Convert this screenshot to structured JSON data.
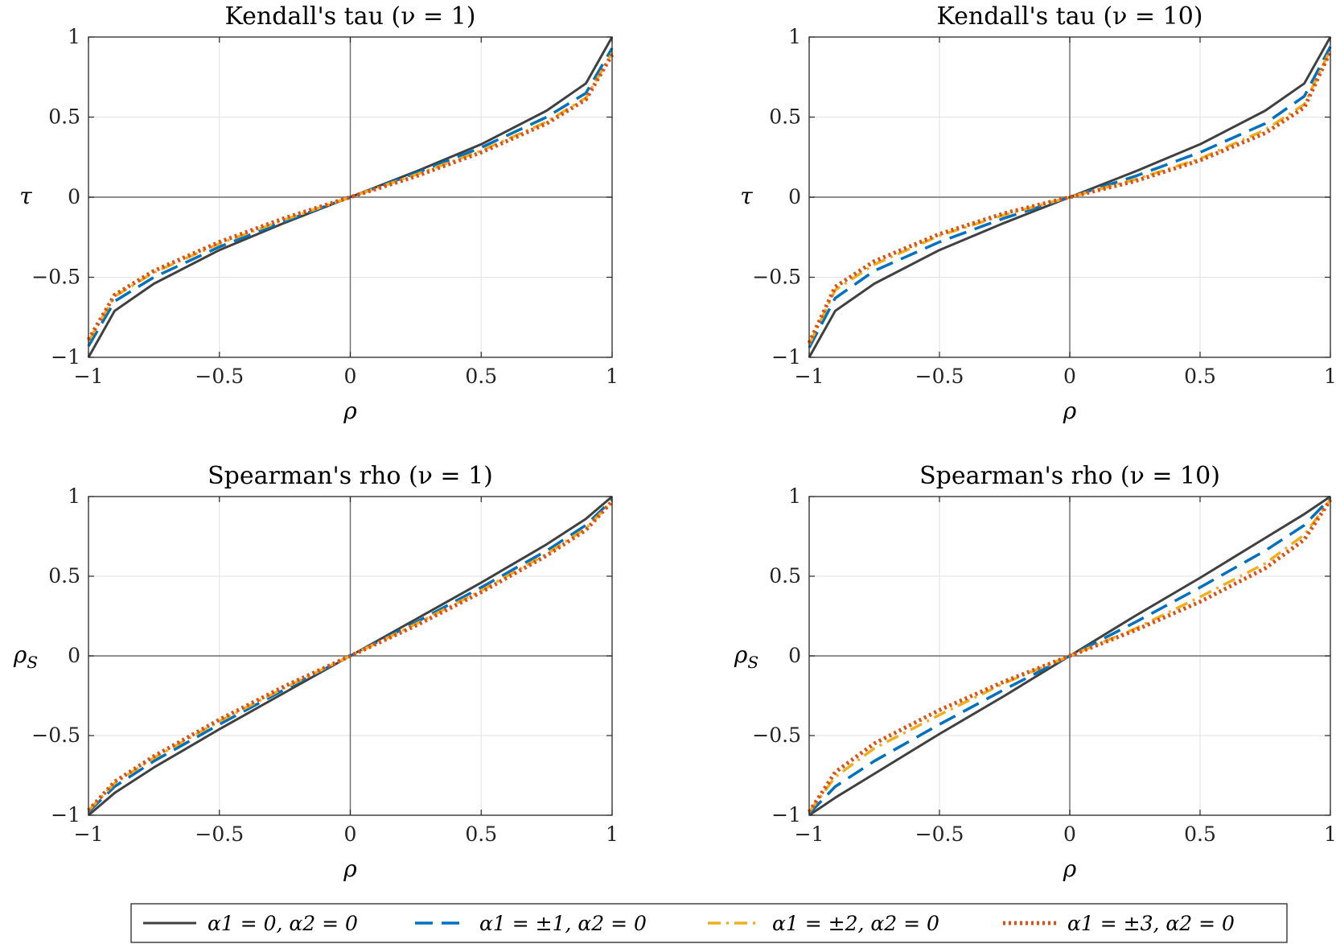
{
  "chart_data": [
    {
      "type": "line",
      "title": "Kendall's tau (ν = 1)",
      "xlabel": "ρ",
      "ylabel": "τ",
      "xlim": [
        -1,
        1
      ],
      "ylim": [
        -1,
        1
      ],
      "xticks": [
        "−1",
        "−0.5",
        "0",
        "0.5",
        "1"
      ],
      "yticks": [
        "1",
        "0.5",
        "0",
        "−0.5",
        "−1"
      ],
      "grid": true,
      "x": [
        -1,
        -0.9,
        -0.75,
        -0.5,
        -0.25,
        0,
        0.25,
        0.5,
        0.75,
        0.9,
        1
      ],
      "series": [
        {
          "name": "α1 = 0,  α2 = 0",
          "values": [
            -1,
            -0.71,
            -0.54,
            -0.33,
            -0.16,
            0,
            0.16,
            0.33,
            0.54,
            0.71,
            1
          ]
        },
        {
          "name": "α1 = ±1,  α2 = 0",
          "values": [
            -0.93,
            -0.65,
            -0.5,
            -0.31,
            -0.15,
            0,
            0.15,
            0.31,
            0.5,
            0.65,
            0.93
          ]
        },
        {
          "name": "α1 = ±2,  α2 = 0",
          "values": [
            -0.9,
            -0.62,
            -0.47,
            -0.29,
            -0.14,
            0,
            0.14,
            0.29,
            0.47,
            0.62,
            0.9
          ]
        },
        {
          "name": "α1 = ±3,  α2 = 0",
          "values": [
            -0.89,
            -0.61,
            -0.46,
            -0.28,
            -0.13,
            0,
            0.13,
            0.28,
            0.46,
            0.61,
            0.89
          ]
        }
      ]
    },
    {
      "type": "line",
      "title": "Kendall's tau (ν = 10)",
      "xlabel": "ρ",
      "ylabel": "τ",
      "xlim": [
        -1,
        1
      ],
      "ylim": [
        -1,
        1
      ],
      "xticks": [
        "−1",
        "−0.5",
        "0",
        "0.5",
        "1"
      ],
      "yticks": [
        "1",
        "0.5",
        "0",
        "−0.5",
        "−1"
      ],
      "grid": true,
      "x": [
        -1,
        -0.9,
        -0.75,
        -0.5,
        -0.25,
        0,
        0.25,
        0.5,
        0.75,
        0.9,
        1
      ],
      "series": [
        {
          "name": "α1 = 0,  α2 = 0",
          "values": [
            -1,
            -0.71,
            -0.54,
            -0.33,
            -0.16,
            0,
            0.16,
            0.33,
            0.54,
            0.71,
            1
          ]
        },
        {
          "name": "α1 = ±1,  α2 = 0",
          "values": [
            -0.94,
            -0.63,
            -0.46,
            -0.28,
            -0.13,
            0,
            0.13,
            0.28,
            0.46,
            0.63,
            0.94
          ]
        },
        {
          "name": "α1 = ±2,  α2 = 0",
          "values": [
            -0.92,
            -0.58,
            -0.42,
            -0.24,
            -0.11,
            0,
            0.11,
            0.24,
            0.42,
            0.58,
            0.92
          ]
        },
        {
          "name": "α1 = ±3,  α2 = 0",
          "values": [
            -0.91,
            -0.56,
            -0.4,
            -0.23,
            -0.1,
            0,
            0.1,
            0.23,
            0.4,
            0.56,
            0.91
          ]
        }
      ]
    },
    {
      "type": "line",
      "title": "Spearman's rho (ν = 1)",
      "xlabel": "ρ",
      "ylabel": "ρ_S",
      "xlim": [
        -1,
        1
      ],
      "ylim": [
        -1,
        1
      ],
      "xticks": [
        "−1",
        "−0.5",
        "0",
        "0.5",
        "1"
      ],
      "yticks": [
        "1",
        "0.5",
        "0",
        "−0.5",
        "−1"
      ],
      "grid": true,
      "x": [
        -1,
        -0.9,
        -0.75,
        -0.5,
        -0.25,
        0,
        0.25,
        0.5,
        0.75,
        0.9,
        1
      ],
      "series": [
        {
          "name": "α1 = 0,  α2 = 0",
          "values": [
            -1,
            -0.86,
            -0.7,
            -0.46,
            -0.23,
            0,
            0.23,
            0.46,
            0.7,
            0.86,
            1
          ]
        },
        {
          "name": "α1 = ±1,  α2 = 0",
          "values": [
            -0.98,
            -0.82,
            -0.66,
            -0.43,
            -0.21,
            0,
            0.21,
            0.43,
            0.66,
            0.82,
            0.98
          ]
        },
        {
          "name": "α1 = ±2,  α2 = 0",
          "values": [
            -0.97,
            -0.8,
            -0.64,
            -0.41,
            -0.2,
            0,
            0.2,
            0.41,
            0.64,
            0.8,
            0.97
          ]
        },
        {
          "name": "α1 = ±3,  α2 = 0",
          "values": [
            -0.97,
            -0.79,
            -0.63,
            -0.4,
            -0.19,
            0,
            0.19,
            0.4,
            0.63,
            0.79,
            0.97
          ]
        }
      ]
    },
    {
      "type": "line",
      "title": "Spearman's rho (ν = 10)",
      "xlabel": "ρ",
      "ylabel": "ρ_S",
      "xlim": [
        -1,
        1
      ],
      "ylim": [
        -1,
        1
      ],
      "xticks": [
        "−1",
        "−0.5",
        "0",
        "0.5",
        "1"
      ],
      "yticks": [
        "1",
        "0.5",
        "0",
        "−0.5",
        "−1"
      ],
      "grid": true,
      "x": [
        -1,
        -0.9,
        -0.75,
        -0.5,
        -0.25,
        0,
        0.25,
        0.5,
        0.75,
        0.9,
        1
      ],
      "series": [
        {
          "name": "α1 = 0,  α2 = 0",
          "values": [
            -1,
            -0.89,
            -0.74,
            -0.49,
            -0.25,
            0,
            0.25,
            0.49,
            0.74,
            0.89,
            1
          ]
        },
        {
          "name": "α1 = ±1,  α2 = 0",
          "values": [
            -0.99,
            -0.82,
            -0.66,
            -0.43,
            -0.21,
            0,
            0.21,
            0.43,
            0.66,
            0.82,
            0.99
          ]
        },
        {
          "name": "α1 = ±2,  α2 = 0",
          "values": [
            -0.98,
            -0.76,
            -0.58,
            -0.37,
            -0.17,
            0,
            0.17,
            0.37,
            0.58,
            0.76,
            0.98
          ]
        },
        {
          "name": "α1 = ±3,  α2 = 0",
          "values": [
            -0.98,
            -0.73,
            -0.55,
            -0.34,
            -0.16,
            0,
            0.16,
            0.34,
            0.55,
            0.73,
            0.98
          ]
        }
      ]
    }
  ],
  "legend": {
    "placement": "bottom",
    "entries": [
      {
        "label": "α1 = 0,  α2 = 0",
        "color": "#404040",
        "style": "solid"
      },
      {
        "label": "α1 = ±1,  α2 = 0",
        "color": "#0072BD",
        "style": "dashed"
      },
      {
        "label": "α1 = ±2,  α2 = 0",
        "color": "#EDB120",
        "style": "dashdot"
      },
      {
        "label": "α1 = ±3,  α2 = 0",
        "color": "#D95319",
        "style": "dotted"
      }
    ]
  }
}
